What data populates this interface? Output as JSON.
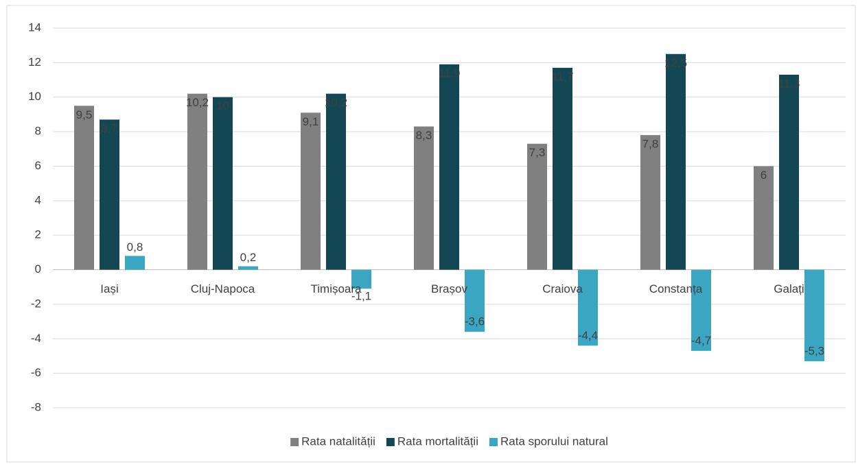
{
  "chart_data": {
    "type": "bar",
    "categories": [
      "Iași",
      "Cluj-Napoca",
      "Timișoara",
      "Brașov",
      "Craiova",
      "Constanța",
      "Galați"
    ],
    "series": [
      {
        "name": "Rata natalității",
        "color": "#808080",
        "values": [
          9.5,
          10.2,
          9.1,
          8.3,
          7.3,
          7.8,
          6
        ],
        "value_labels": [
          "9,5",
          "10,2",
          "9,1",
          "8,3",
          "7,3",
          "7,8",
          "6"
        ]
      },
      {
        "name": "Rata mortalității",
        "color": "#134753",
        "values": [
          8.7,
          10,
          10.2,
          11.9,
          11.7,
          12.5,
          11.3
        ],
        "value_labels": [
          "8,7",
          "10",
          "10,2",
          "11,9",
          "11,7",
          "12,5",
          "11,3"
        ]
      },
      {
        "name": "Rata sporului natural",
        "color": "#3aa6c2",
        "values": [
          0.8,
          0.2,
          -1.1,
          -3.6,
          -4.4,
          -4.7,
          -5.3
        ],
        "value_labels": [
          "0,8",
          "0,2",
          "-1,1",
          "-3,6",
          "-4,4",
          "-4,7",
          "-5,3"
        ]
      }
    ],
    "ylim": [
      -8,
      14
    ],
    "yticks": [
      -8,
      -6,
      -4,
      -2,
      0,
      2,
      4,
      6,
      8,
      10,
      12,
      14
    ],
    "grid": true,
    "legend": "bottom"
  }
}
